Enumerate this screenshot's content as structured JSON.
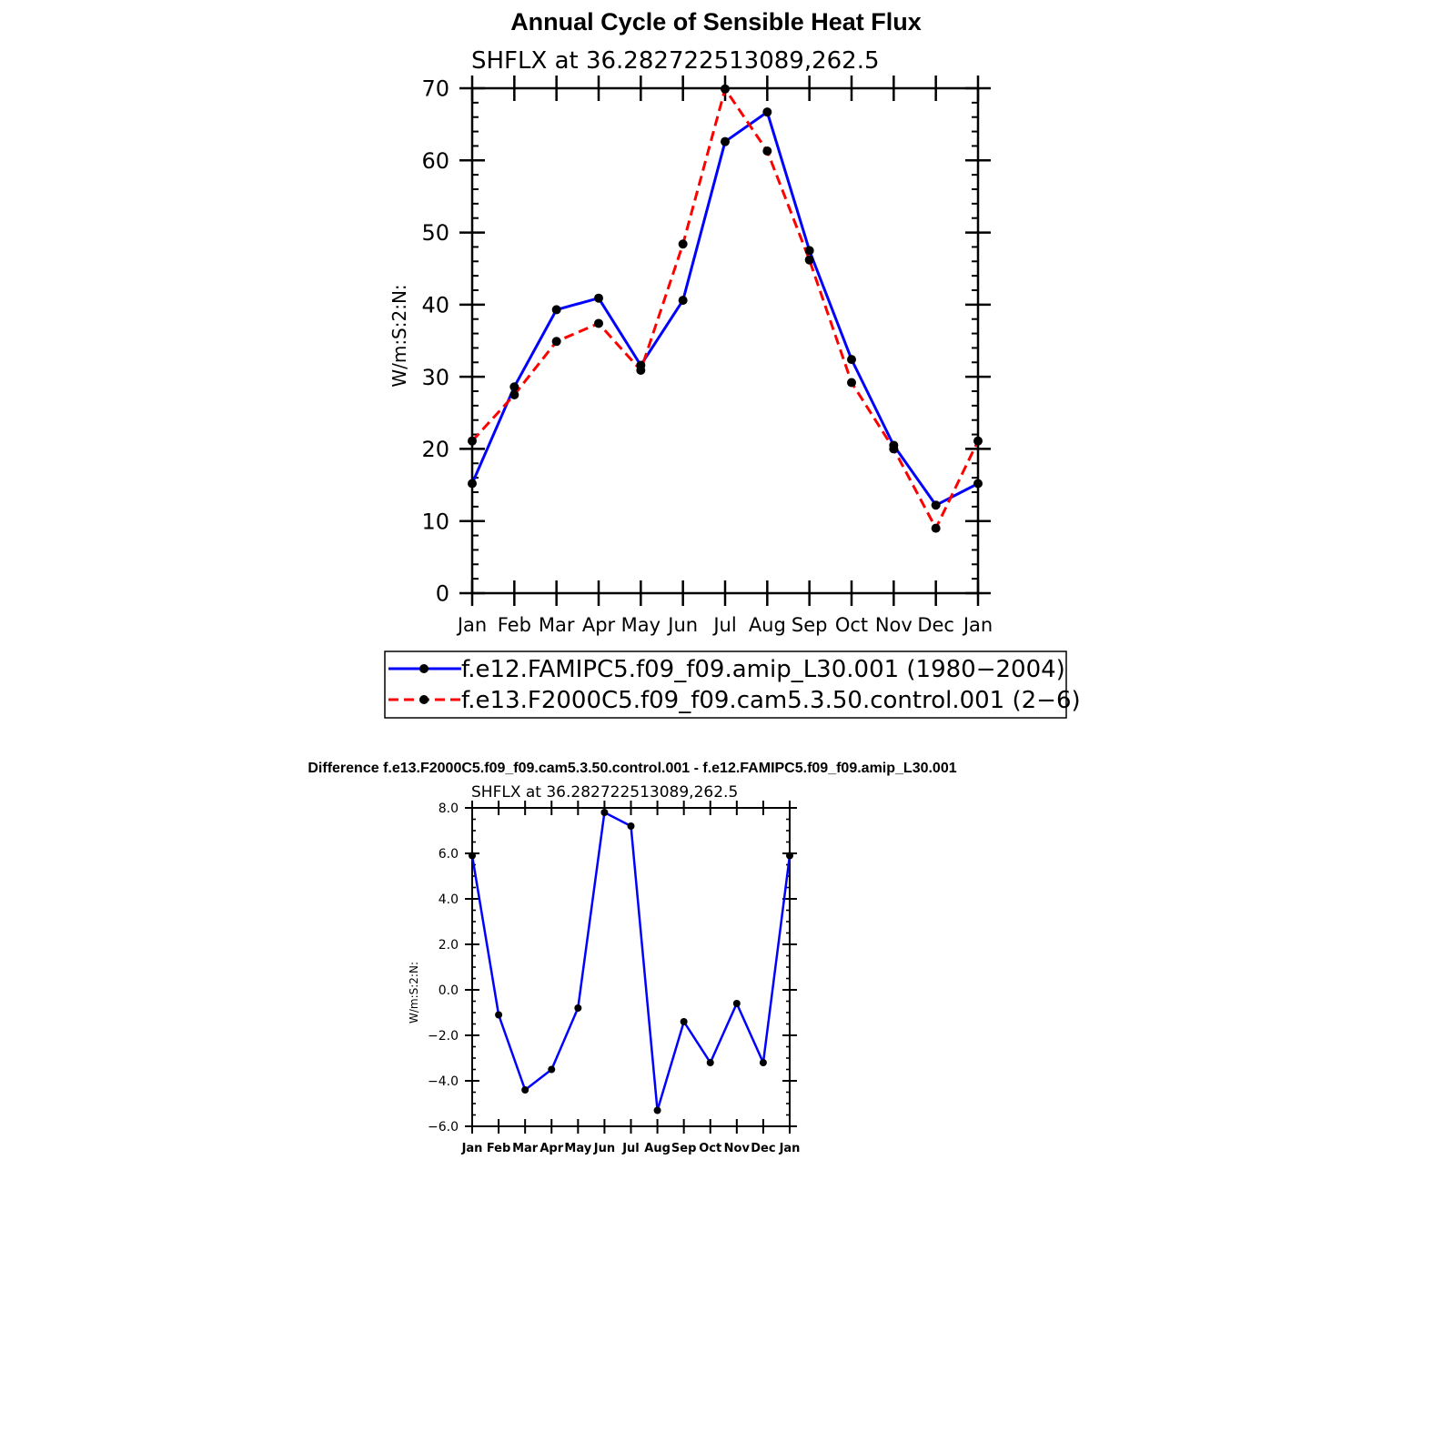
{
  "chart_data": [
    {
      "type": "line",
      "title": "Annual Cycle of Sensible Heat Flux",
      "subtitle": "SHFLX  at  36.282722513089,262.5",
      "ylabel": "W/m:S:2:N:",
      "ylim": [
        0,
        70
      ],
      "yticks": [
        0,
        10,
        20,
        30,
        40,
        50,
        60,
        70
      ],
      "ytick_labels": [
        "0",
        "10",
        "20",
        "30",
        "40",
        "50",
        "60",
        "70"
      ],
      "categories": [
        "Jan",
        "Feb",
        "Mar",
        "Apr",
        "May",
        "Jun",
        "Jul",
        "Aug",
        "Sep",
        "Oct",
        "Nov",
        "Dec",
        "Jan"
      ],
      "series": [
        {
          "name": "f.e12.FAMIPC5.f09_f09.amip_L30.001  (1980−2004)",
          "color": "#0000ff",
          "dash": "solid",
          "values": [
            15.2,
            28.6,
            39.3,
            40.9,
            31.6,
            40.6,
            62.6,
            66.7,
            47.5,
            32.4,
            20.5,
            12.2,
            15.2
          ]
        },
        {
          "name": "f.e13.F2000C5.f09_f09.cam5.3.50.control.001  (2−6)",
          "color": "#ff0000",
          "dash": "dashed",
          "values": [
            21.1,
            27.5,
            34.9,
            37.4,
            30.9,
            48.4,
            69.9,
            61.3,
            46.2,
            29.2,
            20.0,
            9.0,
            21.1
          ]
        }
      ],
      "grid": false,
      "legend": "bottom"
    },
    {
      "type": "line",
      "title": "Difference f.e13.F2000C5.f09_f09.cam5.3.50.control.001 - f.e12.FAMIPC5.f09_f09.amip_L30.001",
      "subtitle": "SHFLX  at  36.282722513089,262.5",
      "ylabel": "W/m:S:2:N:",
      "ylim": [
        -6,
        8
      ],
      "yticks": [
        -6,
        -4,
        -2,
        0,
        2,
        4,
        6,
        8
      ],
      "ytick_labels": [
        "−6.0",
        "−4.0",
        "−2.0",
        "0.0",
        "2.0",
        "4.0",
        "6.0",
        "8.0"
      ],
      "categories": [
        "Jan",
        "Feb",
        "Mar",
        "Apr",
        "May",
        "Jun",
        "Jul",
        "Aug",
        "Sep",
        "Oct",
        "Nov",
        "Dec",
        "Jan"
      ],
      "series": [
        {
          "color": "#0000ff",
          "dash": "solid",
          "values": [
            5.9,
            -1.1,
            -4.4,
            -3.5,
            -0.8,
            7.8,
            7.2,
            -5.3,
            -1.4,
            -3.2,
            -0.6,
            -3.2,
            5.9
          ]
        }
      ],
      "grid": false,
      "legend": "none"
    }
  ]
}
